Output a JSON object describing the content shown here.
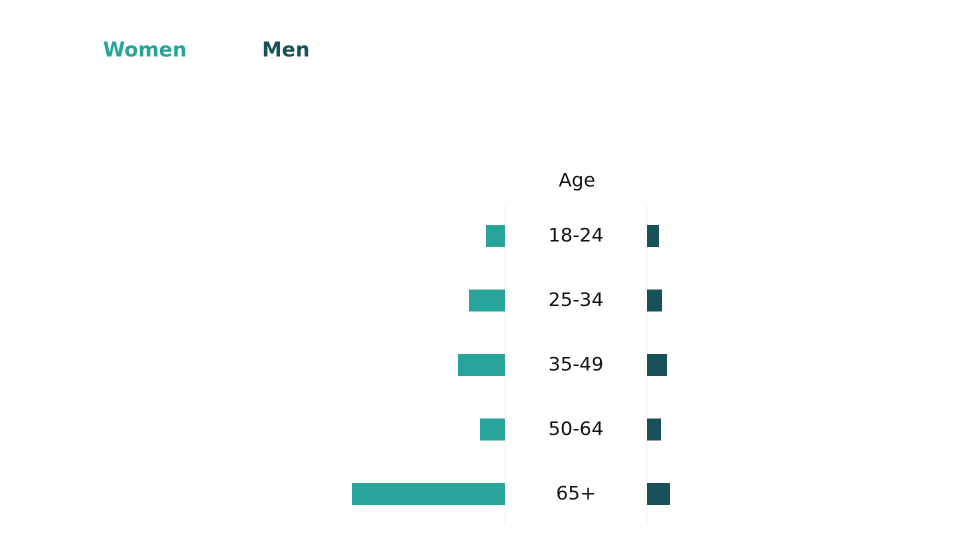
{
  "chart_data": {
    "type": "butterfly",
    "x_label": "Age",
    "categories": [
      "18-24",
      "25-34",
      "35-49",
      "50-64",
      "65+"
    ],
    "series": [
      {
        "name": "Women",
        "color": "#27a59a",
        "values": [
          19,
          36,
          47,
          25,
          153
        ]
      },
      {
        "name": "Men",
        "color": "#17525a",
        "values": [
          12,
          15,
          20,
          14,
          23
        ]
      }
    ],
    "xlim": [
      0,
      200
    ]
  }
}
